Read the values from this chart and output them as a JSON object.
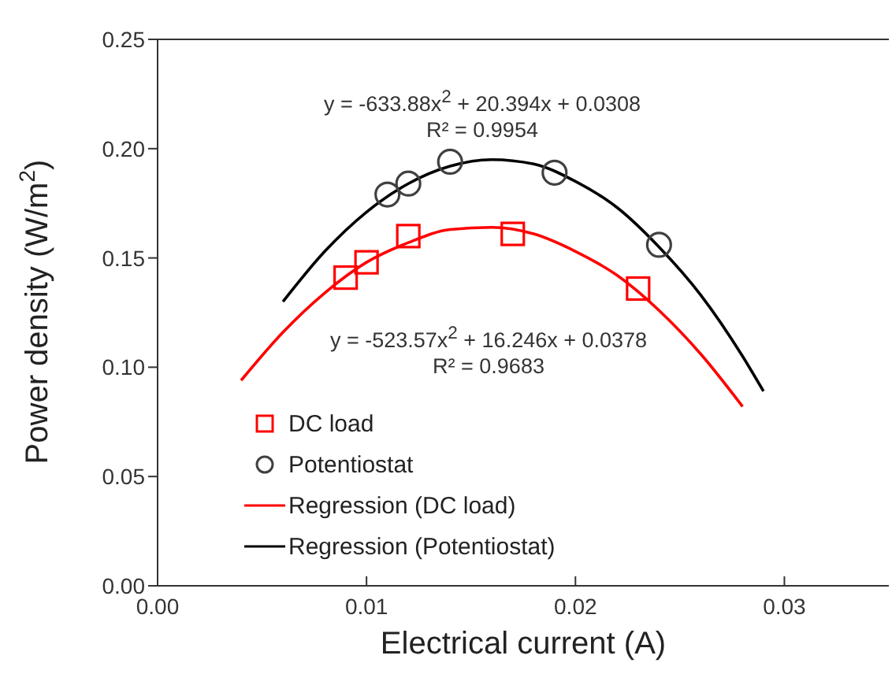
{
  "chart_data": {
    "type": "scatter",
    "xlabel": "Electrical current (A)",
    "ylabel": "Power density (W/m$^{2}$)",
    "xlim": [
      0,
      0.035
    ],
    "xticks": [
      {
        "value": 0,
        "label": "0.00"
      },
      {
        "value": 0.01,
        "label": "0.01"
      },
      {
        "value": 0.02,
        "label": "0.02"
      },
      {
        "value": 0.03,
        "label": "0.03"
      }
    ],
    "ylim": [
      0,
      0.25
    ],
    "yticks": [
      {
        "value": 0,
        "label": "0.00"
      },
      {
        "value": 0.05,
        "label": "0.05"
      },
      {
        "value": 0.1,
        "label": "0.10"
      },
      {
        "value": 0.15,
        "label": "0.15"
      },
      {
        "value": 0.2,
        "label": "0.20"
      },
      {
        "value": 0.25,
        "label": "0.25"
      }
    ],
    "grid": false,
    "legend": "bottom left",
    "series": [
      {
        "name": "DC load",
        "type": "scatter",
        "marker": "square",
        "color": "#ff0000",
        "x": [
          0.009,
          0.01,
          0.012,
          0.017,
          0.023
        ],
        "values": [
          0.141,
          0.148,
          0.16,
          0.161,
          0.136
        ]
      },
      {
        "name": "Potentiostat",
        "type": "scatter",
        "marker": "circle",
        "color": "#404040",
        "x": [
          0.011,
          0.012,
          0.014,
          0.019,
          0.024
        ],
        "values": [
          0.179,
          0.184,
          0.194,
          0.189,
          0.156
        ]
      },
      {
        "name": "Regression (DC load)",
        "type": "line",
        "marker": "none",
        "color": "#ff0000",
        "x": [
          0.004,
          0.006,
          0.008,
          0.01,
          0.012,
          0.014,
          0.016,
          0.018,
          0.02,
          0.022,
          0.024,
          0.026,
          0.028
        ],
        "values": [
          0.094,
          0.116,
          0.134,
          0.148,
          0.157,
          0.163,
          0.164,
          0.161,
          0.153,
          0.142,
          0.126,
          0.106,
          0.082
        ]
      },
      {
        "name": "Regression (Potentiostat)",
        "type": "line",
        "marker": "none",
        "color": "#000000",
        "x": [
          0.006,
          0.008,
          0.01,
          0.012,
          0.014,
          0.016,
          0.018,
          0.02,
          0.022,
          0.024,
          0.026,
          0.028,
          0.029
        ],
        "values": [
          0.13,
          0.153,
          0.171,
          0.184,
          0.192,
          0.195,
          0.193,
          0.185,
          0.173,
          0.155,
          0.133,
          0.105,
          0.089
        ]
      }
    ],
    "annotations": [
      "y = -633.88x$^{2}$ + 20.394x + 0.0308",
      "R² = 0.9954",
      "y = -523.57x$^{2}$ + 16.246x + 0.0378",
      "R² = 0.9683"
    ]
  }
}
